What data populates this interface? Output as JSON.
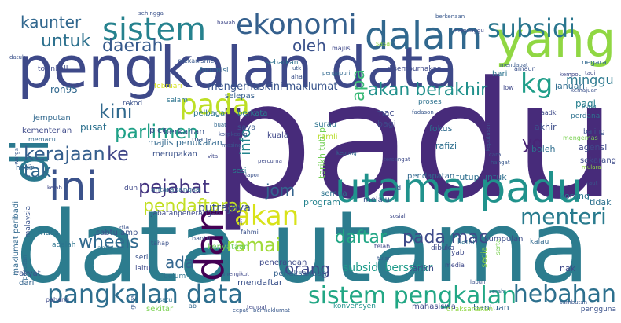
{
  "words": [
    {
      "text": "padu",
      "color": "#472b7a"
    },
    {
      "text": "data utama",
      "color": "#2c7c8e"
    },
    {
      "text": "pengkalan data",
      "color": "#3e4989"
    },
    {
      "text": "yang",
      "color": "#90d743"
    },
    {
      "text": "utama padu",
      "color": "#20928c"
    },
    {
      "text": "ini",
      "color": "#3b528b"
    },
    {
      "text": "di",
      "color": "#2a788e"
    },
    {
      "text": "dan",
      "color": "#440154"
    },
    {
      "text": "dalam",
      "color": "#31688e"
    },
    {
      "text": "ekonomi",
      "color": "#35608d"
    },
    {
      "text": "sistem",
      "color": "#26828e"
    },
    {
      "text": "subsidi",
      "color": "#2a768e"
    },
    {
      "text": "pada",
      "color": "#bddf26"
    },
    {
      "text": "kg",
      "color": "#1f9e89"
    },
    {
      "text": "pangkalan data",
      "color": "#2e6e8e"
    },
    {
      "text": "sistem pengkalan",
      "color": "#22a785"
    },
    {
      "text": "hebahan",
      "color": "#2d708e"
    },
    {
      "text": "akan",
      "color": "#d8e219"
    },
    {
      "text": "menteri",
      "color": "#297b8e"
    },
    {
      "text": "pada mac",
      "color": "#3e4a89"
    },
    {
      "text": "akan berakhir",
      "color": "#21918c"
    },
    {
      "text": "kerajaan",
      "color": "#355f8d"
    },
    {
      "text": "daerah",
      "color": "#375a8c"
    },
    {
      "text": "untuk",
      "color": "#2d718e"
    },
    {
      "text": "kaunter",
      "color": "#31678e"
    },
    {
      "text": "parlimen",
      "color": "#1fa187"
    },
    {
      "text": "pejabat",
      "color": "#453581"
    },
    {
      "text": "pendaftaran",
      "color": "#c2df23"
    },
    {
      "text": "ke",
      "color": "#404688"
    },
    {
      "text": "kini",
      "color": "#30698e"
    },
    {
      "text": "tak",
      "color": "#31678e"
    },
    {
      "text": "oleh",
      "color": "#3b528b"
    },
    {
      "text": "apa",
      "color": "#3aba76"
    },
    {
      "text": "info",
      "color": "#25858e"
    },
    {
      "text": "yg",
      "color": "#482475"
    },
    {
      "text": "jom",
      "color": "#33638d"
    },
    {
      "text": "daftar",
      "color": "#21a685"
    },
    {
      "text": "ramai",
      "color": "#a0da39"
    },
    {
      "text": "orang",
      "color": "#3f4788"
    },
    {
      "text": "wheels",
      "color": "#30698e"
    },
    {
      "text": "ada",
      "color": "#32658e"
    },
    {
      "text": "minggu",
      "color": "#2a788e"
    },
    {
      "text": "mengemaskini maklumat",
      "color": "#39558c"
    },
    {
      "text": "subsidi bersasar",
      "color": "#1e9b8a"
    },
    {
      "text": "ron95",
      "color": "#31688e"
    },
    {
      "text": "putrajaya",
      "color": "#3b528b"
    },
    {
      "text": "tutup untuk",
      "color": "#2e6f8e"
    },
    {
      "text": "tarikh tutup",
      "color": "#73d056"
    },
    {
      "text": "pagi",
      "color": "#27808e"
    },
    {
      "text": "januari",
      "color": "#2f6c8e"
    },
    {
      "text": "akhir",
      "color": "#3d4e8a"
    },
    {
      "text": "boleh",
      "color": "#2e6e8e"
    },
    {
      "text": "agensi",
      "color": "#3f4889"
    },
    {
      "text": "sekarang",
      "color": "#3e4c8a"
    },
    {
      "text": "korang",
      "color": "#2a788e"
    },
    {
      "text": "tidak",
      "color": "#2d718e"
    },
    {
      "text": "kenyataan",
      "color": "#6ccd5a"
    },
    {
      "text": "mendaftar",
      "color": "#3b528b"
    },
    {
      "text": "bantuan",
      "color": "#33628d"
    },
    {
      "text": "mahasiswa",
      "color": "#3f4889"
    },
    {
      "text": "penerangan",
      "color": "#3e4a89"
    },
    {
      "text": "perlaksanaan",
      "color": "#34608d"
    },
    {
      "text": "rafizi",
      "color": "#2e6f8e"
    },
    {
      "text": "semua",
      "color": "#2c738e"
    },
    {
      "text": "program",
      "color": "#25838e"
    },
    {
      "text": "melalui",
      "color": "#3a548c"
    },
    {
      "text": "pendapatan",
      "color": "#31688e"
    },
    {
      "text": "tarikh",
      "color": "#3d4d8a"
    },
    {
      "text": "fokus",
      "color": "#2f6b8e"
    },
    {
      "text": "ramli",
      "color": "#b8de29"
    },
    {
      "text": "surau",
      "color": "#2c738e"
    },
    {
      "text": "mac",
      "color": "#3e4a89"
    },
    {
      "text": "bagi",
      "color": "#3f4889"
    },
    {
      "text": "picc",
      "color": "#3e4c8a"
    },
    {
      "text": "berkaitan",
      "color": "#3a548c"
    },
    {
      "text": "majlis penukaran",
      "color": "#31688e"
    },
    {
      "text": "pelbagai",
      "color": "#2c738e"
    },
    {
      "text": "berkata",
      "color": "#27808e"
    },
    {
      "text": "saya",
      "color": "#38588c"
    },
    {
      "text": "kuala",
      "color": "#3f4788"
    },
    {
      "text": "merupakan",
      "color": "#3b528b"
    },
    {
      "text": "pusat",
      "color": "#2d718e"
    },
    {
      "text": "jemputan",
      "color": "#31688e"
    },
    {
      "text": "kementerian",
      "color": "#3e4a89"
    },
    {
      "text": "hadir",
      "color": "#33638d"
    },
    {
      "text": "selepas",
      "color": "#355f8d"
    },
    {
      "text": "rekod",
      "color": "#3b528b"
    },
    {
      "text": "februari",
      "color": "#d8e219"
    },
    {
      "text": "salam",
      "color": "#2c738e"
    },
    {
      "text": "mana",
      "color": "#38588c"
    },
    {
      "text": "sesi",
      "color": "#27808e"
    },
    {
      "text": "dun",
      "color": "#3f4889"
    },
    {
      "text": "antarabangsa",
      "color": "#31688e"
    },
    {
      "text": "jabatanpenerangan",
      "color": "#3e4a89"
    },
    {
      "text": "masa",
      "color": "#2d718e"
    },
    {
      "text": "sabtu amp",
      "color": "#3b528b"
    },
    {
      "text": "maklumat peribadi",
      "color": "#31688e"
    },
    {
      "text": "malaysia",
      "color": "#3a548c"
    },
    {
      "text": "adalah",
      "color": "#2c738e"
    },
    {
      "text": "seri",
      "color": "#3b528b"
    },
    {
      "text": "iaitu",
      "color": "#3e4a89"
    },
    {
      "text": "belum",
      "color": "#2c738e"
    },
    {
      "text": "kumpulan",
      "color": "#3d4e8a"
    },
    {
      "text": "kalau",
      "color": "#31688e"
    },
    {
      "text": "nak",
      "color": "#3f4889"
    },
    {
      "text": "rakyat",
      "color": "#3b528b"
    },
    {
      "text": "dari",
      "color": "#33638d"
    },
    {
      "text": "sekitar",
      "color": "#7ad151"
    },
    {
      "text": "konvensyen",
      "color": "#21918c"
    },
    {
      "text": "dilaksanakan",
      "color": "#90d743"
    },
    {
      "text": "pengguna",
      "color": "#3b528b"
    },
    {
      "text": "sebarkan",
      "color": "#2d718e"
    },
    {
      "text": "forumisi",
      "color": "#31688e"
    },
    {
      "text": "townhall",
      "color": "#3e4a89"
    },
    {
      "text": "mekanisme",
      "color": "#38588c"
    },
    {
      "text": "majlis",
      "color": "#3f4889"
    },
    {
      "text": "ahad",
      "color": "#3b528b"
    },
    {
      "text": "disempurnakan",
      "color": "#3e4a89"
    },
    {
      "text": "hari",
      "color": "#2c738e"
    },
    {
      "text": "amaun",
      "color": "#3b528b"
    },
    {
      "text": "negara",
      "color": "#31688e"
    },
    {
      "text": "sasar",
      "color": "#90d743"
    },
    {
      "text": "utk",
      "color": "#38588c"
    },
    {
      "text": "iow",
      "color": "#3f4889"
    },
    {
      "text": "aadk",
      "color": "#3e4a89"
    },
    {
      "text": "perdana",
      "color": "#2d718e"
    },
    {
      "text": "baling",
      "color": "#3b528b"
    },
    {
      "text": "memacu",
      "color": "#31688e"
    },
    {
      "text": "warga",
      "color": "#38588c"
    },
    {
      "text": "kelab",
      "color": "#3f4889"
    },
    {
      "text": "id",
      "color": "#3b528b"
    },
    {
      "text": "yab",
      "color": "#3e4a89"
    },
    {
      "text": "kami",
      "color": "#2c738e"
    },
    {
      "text": "tahap",
      "color": "#3b528b"
    },
    {
      "text": "sedia",
      "color": "#90d743"
    },
    {
      "text": "serta",
      "color": "#7ad151"
    },
    {
      "text": "telah",
      "color": "#3f4889"
    },
    {
      "text": "dibuka",
      "color": "#3e4a89"
    },
    {
      "text": "bantu",
      "color": "#3b528b"
    },
    {
      "text": "satu",
      "color": "#2d718e"
    },
    {
      "text": "guna",
      "color": "#38588c"
    },
    {
      "text": "pahang",
      "color": "#3e4a89"
    },
    {
      "text": "fahmi",
      "color": "#3b528b"
    },
    {
      "text": "tular",
      "color": "#38588c"
    },
    {
      "text": "media",
      "color": "#3f4889"
    },
    {
      "text": "labuh",
      "color": "#3b528b"
    },
    {
      "text": "kepong",
      "color": "#31688e"
    },
    {
      "text": "tersangat",
      "color": "#3e4a89"
    },
    {
      "text": "proses",
      "color": "#2d718e"
    },
    {
      "text": "fadason",
      "color": "#38588c"
    },
    {
      "text": "keputusan",
      "color": "#3b528b"
    },
    {
      "text": "mengemas",
      "color": "#7ad151"
    },
    {
      "text": "mulara",
      "color": "#90d743"
    },
    {
      "text": "pecutan",
      "color": "#31688e"
    },
    {
      "text": "sehingga",
      "color": "#3b528b"
    },
    {
      "text": "bawah",
      "color": "#3f4889"
    },
    {
      "text": "berkenaan",
      "color": "#38588c"
    },
    {
      "text": "menunggu",
      "color": "#3e4a89"
    },
    {
      "text": "portal",
      "color": "#2d718e"
    },
    {
      "text": "datuk",
      "color": "#3b528b"
    },
    {
      "text": "pengapuri",
      "color": "#31688e"
    },
    {
      "text": "kemajuan",
      "color": "#3b528b"
    },
    {
      "text": "mendapat",
      "color": "#38588c"
    },
    {
      "text": "kempo",
      "color": "#3f4889"
    },
    {
      "text": "tadi",
      "color": "#3e4a89"
    },
    {
      "text": "raut",
      "color": "#3b528b"
    },
    {
      "text": "sambutan",
      "color": "#38588c"
    },
    {
      "text": "lapor",
      "color": "#3b528b"
    },
    {
      "text": "buat",
      "color": "#31688e"
    },
    {
      "text": "tempat",
      "color": "#3f4889"
    },
    {
      "text": "cepat",
      "color": "#38588c"
    },
    {
      "text": "sosial",
      "color": "#3e4a89"
    },
    {
      "text": "ni",
      "color": "#3b528b"
    },
    {
      "text": "ab",
      "color": "#31688e"
    },
    {
      "text": "dia",
      "color": "#3b528b"
    },
    {
      "text": "anda",
      "color": "#2c738e"
    },
    {
      "text": "vita",
      "color": "#3f4889"
    },
    {
      "text": "masing",
      "color": "#38588c"
    },
    {
      "text": "percuma",
      "color": "#3e4a89"
    },
    {
      "text": "korpkeong",
      "color": "#3b528b"
    },
    {
      "text": "hangat",
      "color": "#38588c"
    },
    {
      "text": "cara",
      "color": "#3b528b"
    },
    {
      "text": "mengikut",
      "color": "#3f4889"
    },
    {
      "text": "serah",
      "color": "#31688e"
    },
    {
      "text": "bermaklumat",
      "color": "#38588c"
    }
  ]
}
